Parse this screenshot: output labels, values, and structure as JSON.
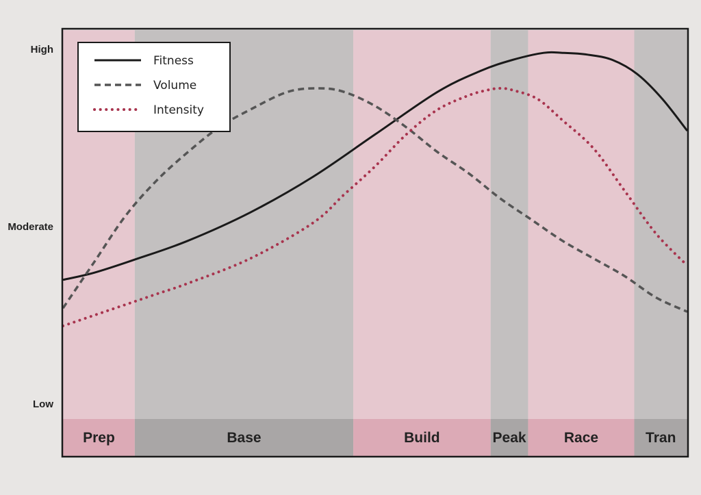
{
  "chart_data": {
    "type": "line",
    "title": "",
    "xlabel": "",
    "ylabel": "",
    "y_ticks": [
      "Low",
      "Moderate",
      "High"
    ],
    "ylim": [
      0,
      100
    ],
    "xlim": [
      0,
      100
    ],
    "legend_position": "top-left",
    "grid": false,
    "phases": [
      {
        "label": "Prep",
        "start": 0,
        "end": 11.5,
        "color": "#e6c8cf"
      },
      {
        "label": "Base",
        "start": 11.5,
        "end": 46.5,
        "color": "#c3c0c0"
      },
      {
        "label": "Build",
        "start": 46.5,
        "end": 68.5,
        "color": "#e6c8cf"
      },
      {
        "label": "Peak",
        "start": 68.5,
        "end": 74.5,
        "color": "#c3c0c0"
      },
      {
        "label": "Race",
        "start": 74.5,
        "end": 91.5,
        "color": "#e6c8cf"
      },
      {
        "label": "Tran",
        "start": 91.5,
        "end": 100,
        "color": "#c3c0c0"
      }
    ],
    "series": [
      {
        "name": "Fitness",
        "style": "solid",
        "color": "#1a1a1a",
        "x": [
          0,
          5,
          12,
          20,
          30,
          40,
          50,
          60,
          67,
          72,
          77,
          80,
          84,
          88,
          92,
          96,
          100
        ],
        "y": [
          35,
          37,
          41,
          46,
          54,
          64,
          76,
          88,
          94,
          97,
          99,
          99,
          98.5,
          97,
          93,
          86,
          77
        ]
      },
      {
        "name": "Volume",
        "style": "dashed",
        "color": "#555555",
        "x": [
          0,
          5,
          10,
          15,
          20,
          25,
          30,
          36,
          41,
          45,
          50,
          55,
          60,
          65,
          70,
          75,
          80,
          85,
          90,
          95,
          100
        ],
        "y": [
          27,
          40,
          53,
          63,
          71,
          78,
          83,
          88,
          89,
          88,
          84,
          78,
          71,
          65,
          58,
          52,
          46,
          41,
          36,
          30,
          26
        ]
      },
      {
        "name": "Intensity",
        "style": "dotted",
        "color": "#a8344e",
        "x": [
          0,
          5,
          10,
          15,
          20,
          30,
          40,
          45,
          50,
          55,
          60,
          65,
          68,
          70,
          72,
          76,
          80,
          85,
          90,
          95,
          100
        ],
        "y": [
          22,
          25,
          28,
          31,
          34,
          41,
          51,
          59,
          67,
          76,
          83,
          87,
          88.5,
          89,
          88.5,
          86,
          80,
          72,
          60,
          48,
          39
        ]
      }
    ]
  },
  "colors": {
    "frame": "#1a1a1a",
    "page": "#e8e6e4",
    "legend_bg": "#ffffff"
  }
}
